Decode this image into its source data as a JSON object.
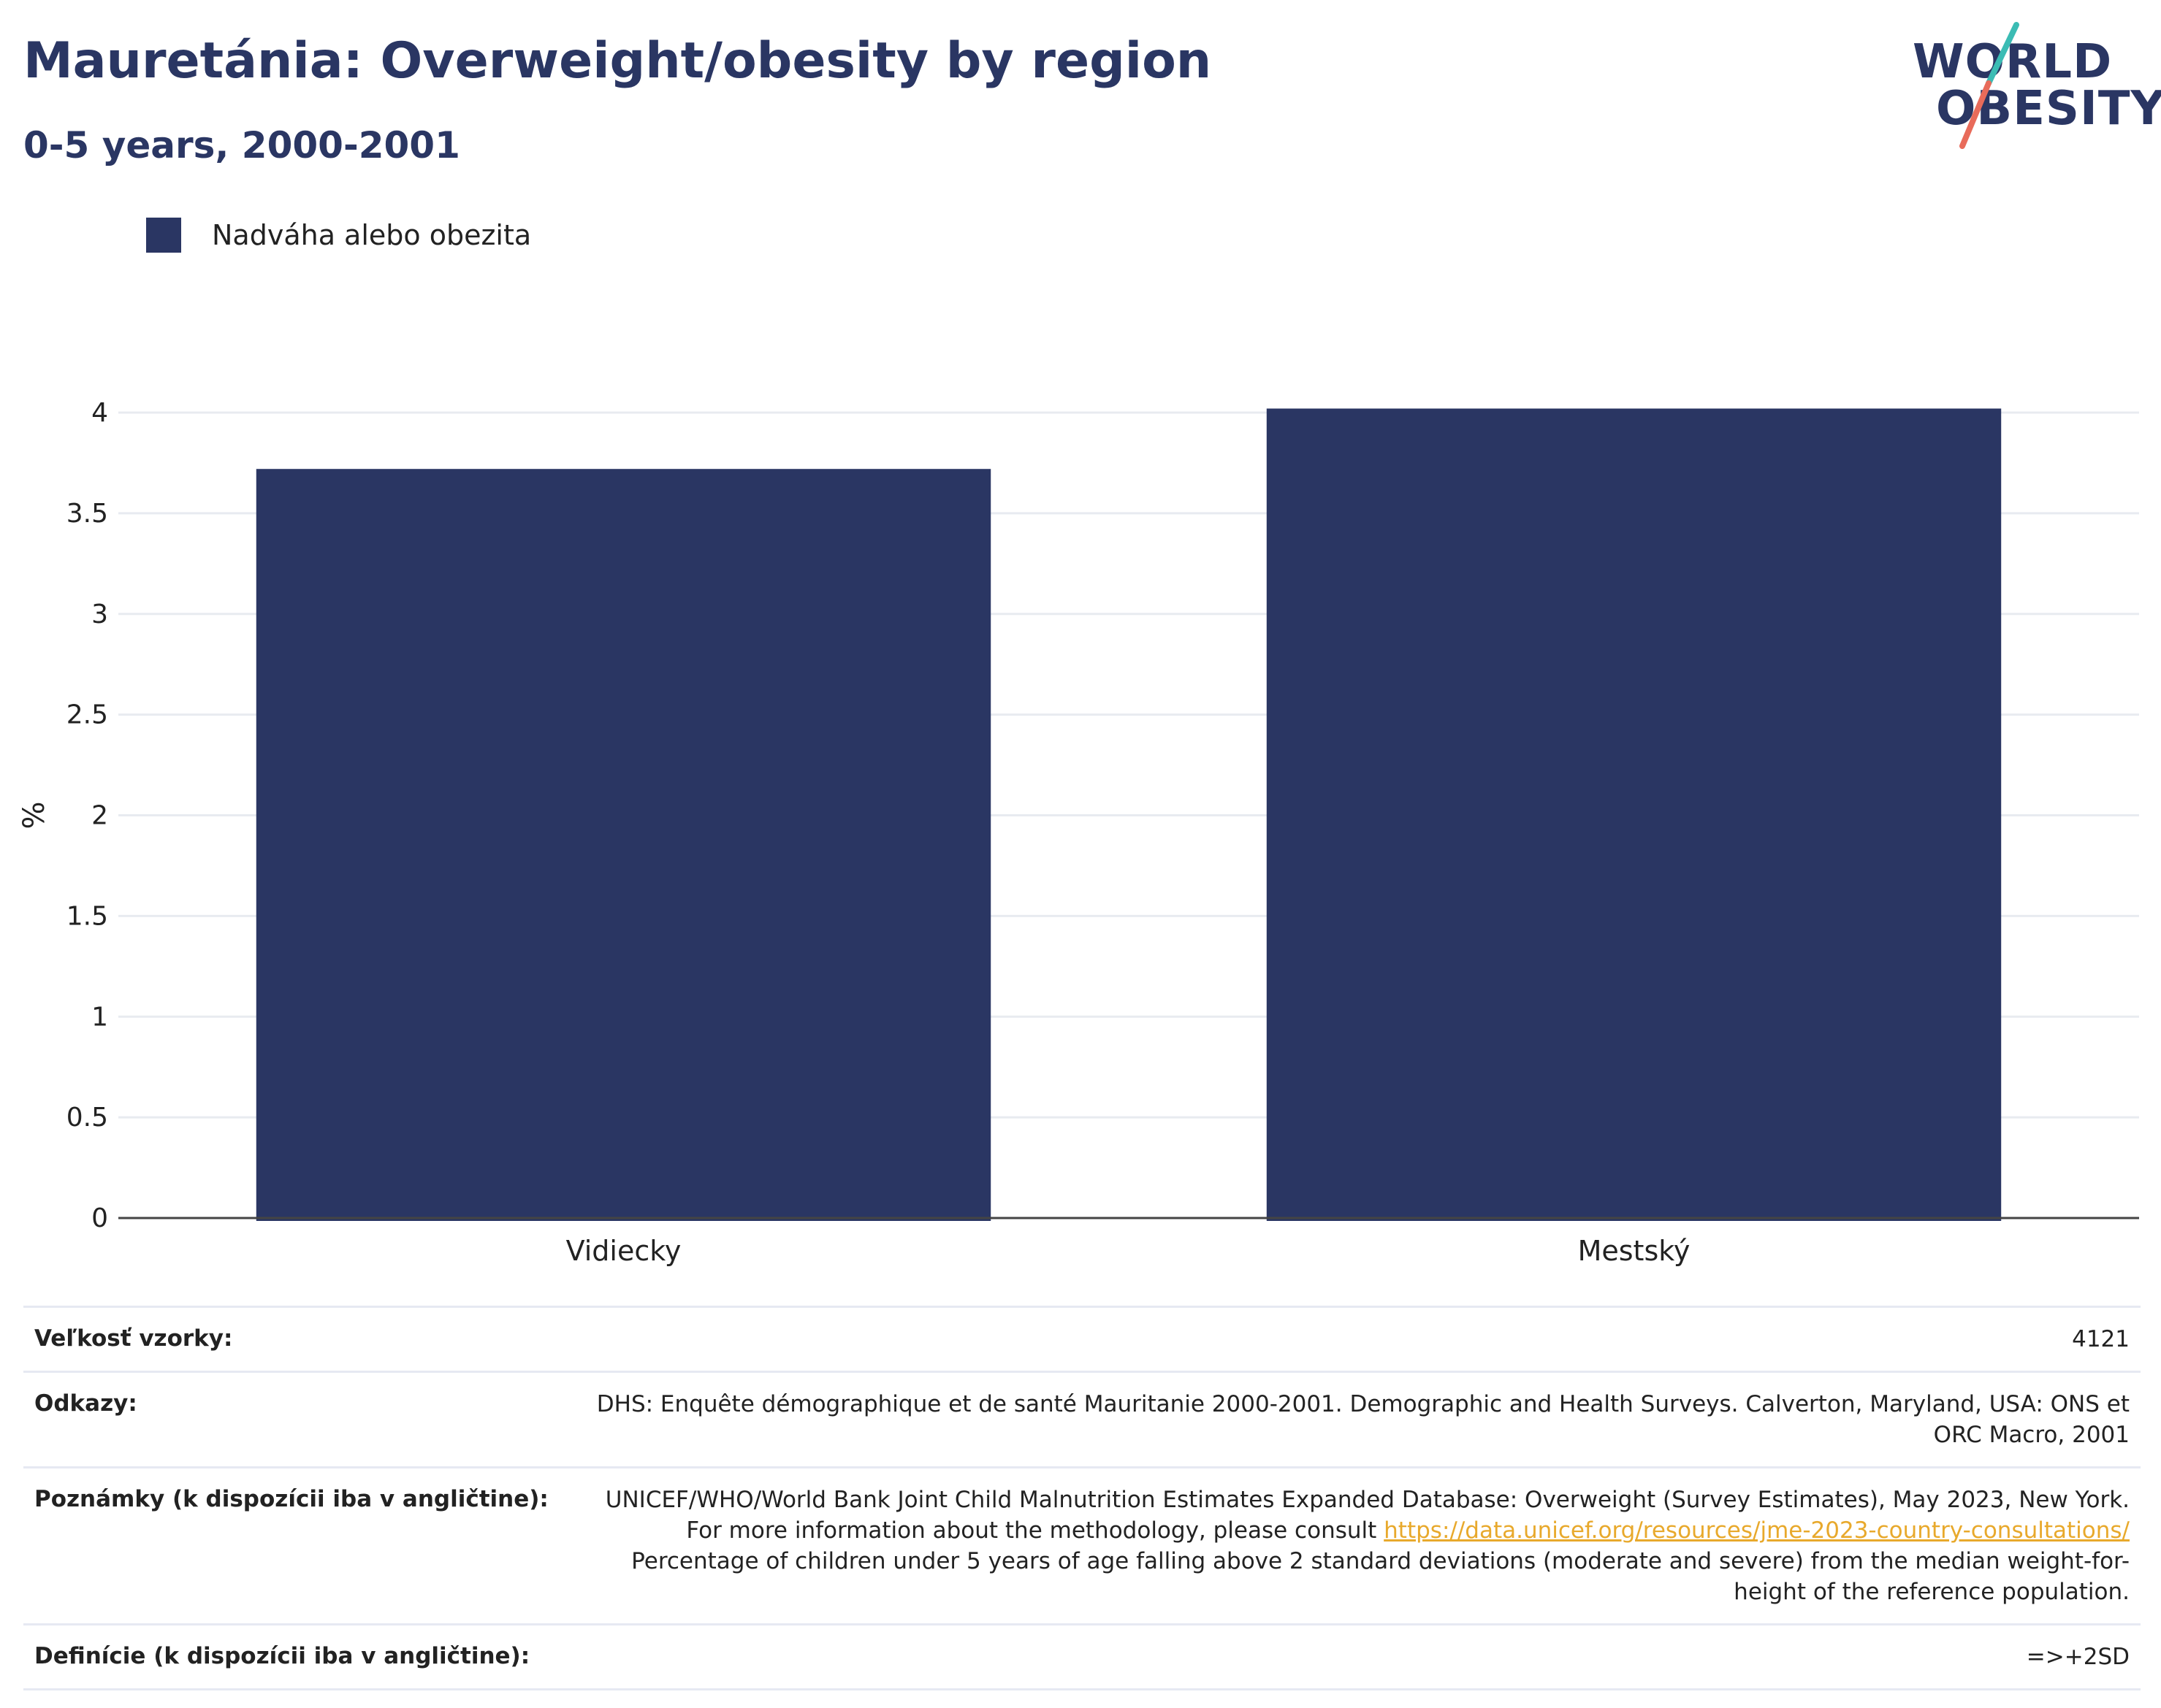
{
  "header": {
    "title": "Mauretánia: Overweight/obesity by region",
    "subtitle": "0-5 years, 2000-2001"
  },
  "logo": {
    "line1": "WORLD",
    "line2": "OBESITY"
  },
  "legend": {
    "label": "Nadváha alebo obezita",
    "color": "#2a3663"
  },
  "chart_data": {
    "type": "bar",
    "categories": [
      "Vidiecky",
      "Mestský"
    ],
    "series": [
      {
        "name": "Nadváha alebo obezita",
        "values": [
          3.72,
          4.02
        ],
        "color": "#2a3663"
      }
    ],
    "ylabel": "%",
    "ylim": [
      0,
      4
    ],
    "yticks": [
      "0",
      "0.5",
      "1",
      "1.5",
      "2",
      "2.5",
      "3",
      "3.5",
      "4"
    ],
    "grid": true
  },
  "meta": {
    "sample_size": {
      "label": "Veľkosť vzorky:",
      "value": "4121"
    },
    "references": {
      "label": "Odkazy:",
      "value": "DHS: Enquête démographique et de santé Mauritanie 2000-2001. Demographic and Health Surveys. Calverton, Maryland, USA: ONS et ORC Macro, 2001"
    },
    "notes": {
      "label": "Poznámky (k dispozícii iba v angličtine):",
      "text_before": "UNICEF/WHO/World Bank Joint Child Malnutrition Estimates Expanded Database: Overweight (Survey Estimates), May 2023, New York. For more information about the methodology, please consult",
      "link": "https://data.unicef.org/resources/jme-2023-country-consultations/",
      "text_after": "Percentage of children under 5 years of age falling above 2 standard deviations (moderate and severe) from the median weight-for-height of the reference population."
    },
    "definitions": {
      "label": "Definície (k dispozícii iba v angličtine):",
      "value": "=>+2SD"
    }
  }
}
